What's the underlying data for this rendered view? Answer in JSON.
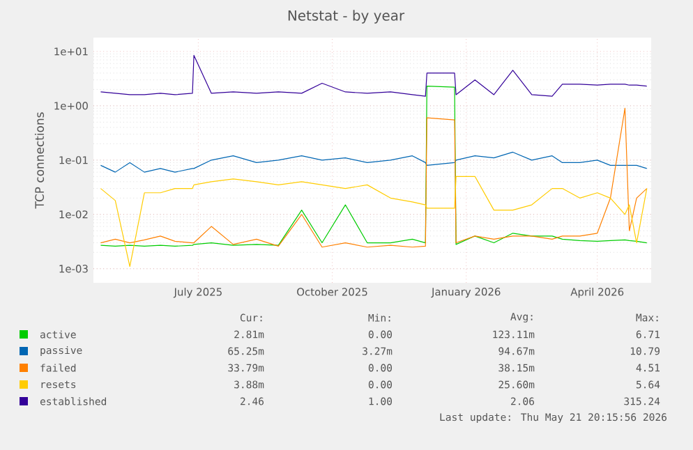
{
  "chart_data": {
    "type": "line",
    "title": "Netstat - by year",
    "ylabel": "TCP connections",
    "x": [
      "2025-04-25",
      "2025-05-05",
      "2025-05-15",
      "2025-05-25",
      "2025-06-05",
      "2025-06-15",
      "2025-06-27",
      "2025-06-28",
      "2025-07-10",
      "2025-07-25",
      "2025-08-10",
      "2025-08-25",
      "2025-09-10",
      "2025-09-24",
      "2025-10-10",
      "2025-10-25",
      "2025-11-10",
      "2025-11-25",
      "2025-12-04",
      "2025-12-05",
      "2025-12-24",
      "2025-12-25",
      "2026-01-07",
      "2026-01-20",
      "2026-02-02",
      "2026-02-15",
      "2026-03-01",
      "2026-03-08",
      "2026-03-20",
      "2026-04-01",
      "2026-04-10",
      "2026-04-20",
      "2026-04-23",
      "2026-04-28",
      "2026-05-05"
    ],
    "series": [
      {
        "name": "active",
        "color": "#00cc00",
        "values": [
          0.0027,
          0.0026,
          0.0027,
          0.0026,
          0.0027,
          0.0026,
          0.0027,
          0.0028,
          0.003,
          0.0027,
          0.0028,
          0.0027,
          0.012,
          0.003,
          0.015,
          0.003,
          0.003,
          0.0035,
          0.003,
          2.3,
          2.2,
          0.0028,
          0.004,
          0.003,
          0.0045,
          0.004,
          0.004,
          0.0035,
          0.0033,
          0.0032,
          0.0033,
          0.0034,
          0.0033,
          0.0032,
          0.003
        ]
      },
      {
        "name": "passive",
        "color": "#0066b3",
        "values": [
          0.08,
          0.06,
          0.09,
          0.06,
          0.07,
          0.06,
          0.07,
          0.07,
          0.1,
          0.12,
          0.09,
          0.1,
          0.12,
          0.1,
          0.11,
          0.09,
          0.1,
          0.12,
          0.09,
          0.08,
          0.09,
          0.1,
          0.12,
          0.11,
          0.14,
          0.1,
          0.12,
          0.09,
          0.09,
          0.1,
          0.08,
          0.08,
          0.08,
          0.08,
          0.07
        ]
      },
      {
        "name": "failed",
        "color": "#ff8000",
        "values": [
          0.003,
          0.0035,
          0.003,
          0.0034,
          0.004,
          0.0032,
          0.003,
          0.003,
          0.006,
          0.0028,
          0.0035,
          0.0026,
          0.01,
          0.0025,
          0.003,
          0.0025,
          0.0027,
          0.0025,
          0.0026,
          0.6,
          0.55,
          0.003,
          0.004,
          0.0035,
          0.004,
          0.004,
          0.0035,
          0.004,
          0.004,
          0.0045,
          0.02,
          0.9,
          0.005,
          0.02,
          0.03
        ]
      },
      {
        "name": "resets",
        "color": "#ffcc00",
        "values": [
          0.03,
          0.018,
          0.0011,
          0.025,
          0.025,
          0.03,
          0.03,
          0.035,
          0.04,
          0.045,
          0.04,
          0.035,
          0.04,
          0.035,
          0.03,
          0.035,
          0.02,
          0.017,
          0.015,
          0.013,
          0.013,
          0.05,
          0.05,
          0.012,
          0.012,
          0.015,
          0.03,
          0.03,
          0.02,
          0.025,
          0.02,
          0.01,
          0.015,
          0.003,
          0.03
        ]
      },
      {
        "name": "established",
        "color": "#330099",
        "values": [
          1.8,
          1.7,
          1.6,
          1.6,
          1.7,
          1.6,
          1.7,
          8.5,
          1.7,
          1.8,
          1.7,
          1.8,
          1.7,
          2.6,
          1.8,
          1.7,
          1.8,
          1.6,
          1.5,
          4.0,
          4.0,
          1.6,
          3.0,
          1.6,
          4.5,
          1.6,
          1.5,
          2.5,
          2.5,
          2.4,
          2.5,
          2.5,
          2.4,
          2.4,
          2.3
        ]
      }
    ],
    "xlim": [
      "2025-04-20",
      "2026-05-08"
    ],
    "xticks": [
      {
        "value": "2025-07-01",
        "label": "July 2025"
      },
      {
        "value": "2025-10-01",
        "label": "October 2025"
      },
      {
        "value": "2026-01-01",
        "label": "January 2026"
      },
      {
        "value": "2026-04-01",
        "label": "April 2026"
      }
    ],
    "ylim": [
      0.00055,
      18
    ],
    "log": true,
    "yticks": [
      {
        "value": 0.001,
        "label": "1e-03"
      },
      {
        "value": 0.01,
        "label": "1e-02"
      },
      {
        "value": 0.1,
        "label": "1e-01"
      },
      {
        "value": 1,
        "label": "1e+00"
      },
      {
        "value": 10,
        "label": "1e+01"
      }
    ],
    "grid": true,
    "legend": "bottom",
    "line_style": "solid",
    "annotations": [
      "Cur:",
      "Min:",
      "Avg:",
      "Max:",
      "2.81m",
      "0.00",
      "123.11m",
      "6.71",
      "65.25m",
      "3.27m",
      "94.67m",
      "10.79",
      "33.79m",
      "0.00",
      "38.15m",
      "4.51",
      "3.88m",
      "0.00",
      "25.60m",
      "5.64",
      "2.46",
      "1.00",
      "2.06",
      "315.24",
      "Last update: Thu May 21 20:15:56 2026"
    ]
  }
}
